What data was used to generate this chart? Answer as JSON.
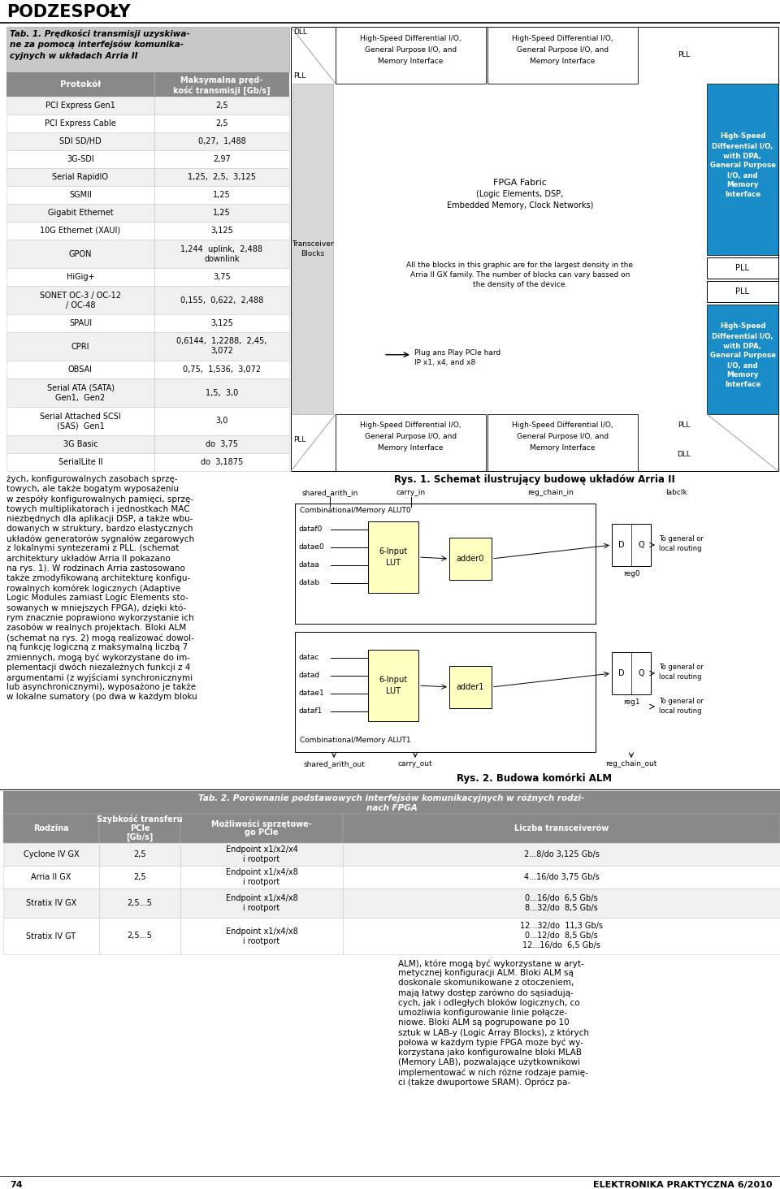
{
  "page_title": "PODZESPOŁY",
  "tab1_rows": [
    [
      "PCI Express Gen1",
      "2,5"
    ],
    [
      "PCI Express Cable",
      "2,5"
    ],
    [
      "SDI SD/HD",
      "0,27,  1,488"
    ],
    [
      "3G-SDI",
      "2,97"
    ],
    [
      "Serial RapidIO",
      "1,25,  2,5,  3,125"
    ],
    [
      "SGMII",
      "1,25"
    ],
    [
      "Gigabit Ethernet",
      "1,25"
    ],
    [
      "10G Ethernet (XAUI)",
      "3,125"
    ],
    [
      "GPON",
      "1,244  uplink,  2,488\ndownlink"
    ],
    [
      "HiGig+",
      "3,75"
    ],
    [
      "SONET OC-3 / OC-12\n/ OC-48",
      "0,155,  0,622,  2,488"
    ],
    [
      "SPAUI",
      "3,125"
    ],
    [
      "CPRI",
      "0,6144,  1,2288,  2,45,\n3,072"
    ],
    [
      "OBSAI",
      "0,75,  1,536,  3,072"
    ],
    [
      "Serial ATA (SATA)\nGen1,  Gen2",
      "1,5,  3,0"
    ],
    [
      "Serial Attached SCSI\n(SAS)  Gen1",
      "3,0"
    ],
    [
      "3G Basic",
      "do  3,75"
    ],
    [
      "SerialLite II",
      "do  3,1875"
    ]
  ],
  "tab2_rows": [
    [
      "Cyclone IV GX",
      "2,5",
      "Endpoint x1/x2/x4\ni rootport",
      "2...8/do 3,125 Gb/s"
    ],
    [
      "Arria II GX",
      "2,5",
      "Endpoint x1/x4/x8\ni rootport",
      "4...16/do 3,75 Gb/s"
    ],
    [
      "Stratix IV GX",
      "2,5...5",
      "Endpoint x1/x4/x8\ni rootport",
      "0...16/do  6,5 Gb/s\n8...32/do  8,5 Gb/s"
    ],
    [
      "Stratix IV GT",
      "2,5...5",
      "Endpoint x1/x4/x8\ni rootport",
      "12...32/do  11,3 Gb/s\n0...12/do  8,5 Gb/s\n12...16/do  6,5 Gb/s"
    ]
  ],
  "body_left_lines": [
    "żych, konfigurowalnych zasobach sprzę-",
    "towych, ale także bogatym wyposażeniu",
    "w zespóły konfigurowalnych pamięci, sprzę-",
    "towych multiplikatorach i jednostkach MAC",
    "niezbędnych dla aplikacji DSP, a także wbu-",
    "dowanych w struktury, bardzo elastycznych",
    "układów generatorów sygnałów zegarowych",
    "z lokalnymi syntezerami z PLL. (schemat",
    "architektury układów Arria II pokazano",
    "na rys. 1). W rodzinach Arria zastosowano",
    "także zmodyfikowaną architekturę konfigu-",
    "rowalnych komórek logicznych (Adaptive",
    "Logic Modules zamiast Logic Elements sto-",
    "sowanych w mniejszych FPGA), dzięki któ-",
    "rym znacznie poprawiono wykorzystanie ich",
    "zasobów w realnych projektach. Bloki ALM",
    "(schemat na rys. 2) mogą realizować dowol-",
    "ną funkcję logiczną z maksymalną liczbą 7",
    "zmiennych, mogą być wykorzystane do im-",
    "plementacji dwóch niezależnych funkcji z 4",
    "argumentami (z wyjściami synchronicznymi",
    "lub asynchronicznymi), wyposażono je także",
    "w lokalne sumatory (po dwa w każdym bloku"
  ],
  "body_right_lines": [
    "ALM), które mogą być wykorzystane w aryt-",
    "metycznej konfiguracji ALM. Bloki ALM są",
    "doskonale skomunikowane z otoczeniem,",
    "mają łatwy dostęp zarówno do sąsiadują-",
    "cych, jak i odległych bloków logicznych, co",
    "umożliwia konfigurowanie linie połącze-",
    "niowe. Bloki ALM są pogrupowane po 10",
    "sztuk w LAB-y (Logic Array Blocks), z których",
    "połowa w każdym typie FPGA może być wy-",
    "korzystana jako konfigurowalne bloki MLAB",
    "(Memory LAB), pozwalające użytkownikowi",
    "implementować w nich różne rodzaje pamię-",
    "ci (także dwuportowe SRAM). Oprócz pa-"
  ],
  "page_bottom_left": "74",
  "page_bottom_right": "ELEKTRONIKA PRAKTYCZNA 6/2010",
  "blue_color": "#1a8dc8",
  "gray_header": "#898989",
  "gray_title": "#999999",
  "light_gray_title": "#c8c8c8"
}
